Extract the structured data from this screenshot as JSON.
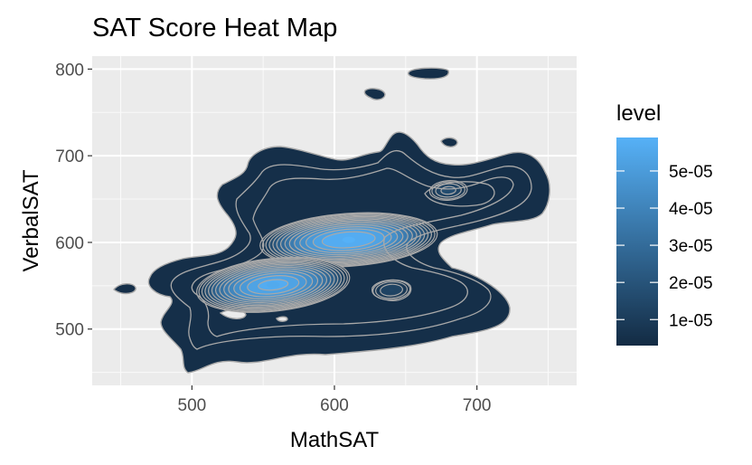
{
  "chart_data": {
    "type": "heatmap",
    "subtype": "2d-density-filled-contour",
    "title": "SAT Score Heat Map",
    "xlabel": "MathSAT",
    "ylabel": "VerbalSAT",
    "xlim": [
      430,
      770
    ],
    "ylim": [
      435,
      815
    ],
    "x_ticks": [
      500,
      600,
      700
    ],
    "y_ticks": [
      500,
      600,
      700,
      800
    ],
    "x_tick_labels": [
      "500",
      "600",
      "700"
    ],
    "y_tick_labels": [
      "500",
      "600",
      "700",
      "800"
    ],
    "grid": true,
    "legend": {
      "title": "level",
      "position": "right",
      "ticks": [
        1e-05,
        2e-05,
        3e-05,
        4e-05,
        5e-05
      ],
      "labels": [
        "1e-05",
        "2e-05",
        "3e-05",
        "4e-05",
        "5e-05"
      ],
      "range": [
        3e-06,
        5.9e-05
      ]
    },
    "colors": {
      "low": "#132B43",
      "high": "#56B1F7",
      "contour_line": "#a9a9a9",
      "panel_background": "#ebebeb",
      "grid": "#ffffff"
    },
    "outer_boundary_level": 1e-06,
    "peaks": [
      {
        "x": 610,
        "y": 603,
        "level": 5.9e-05
      },
      {
        "x": 557,
        "y": 551,
        "level": 5.6e-05
      },
      {
        "x": 680,
        "y": 660,
        "level": 1.6e-05
      },
      {
        "x": 640,
        "y": 545,
        "level": 1.4e-05
      }
    ],
    "contour_levels": [
      3e-06,
      6e-06,
      1e-05,
      1.4e-05,
      1.8e-05,
      2.2e-05,
      2.6e-05,
      3e-05,
      3.4e-05,
      3.8e-05,
      4.2e-05,
      4.6e-05,
      5e-05,
      5.4e-05
    ]
  }
}
